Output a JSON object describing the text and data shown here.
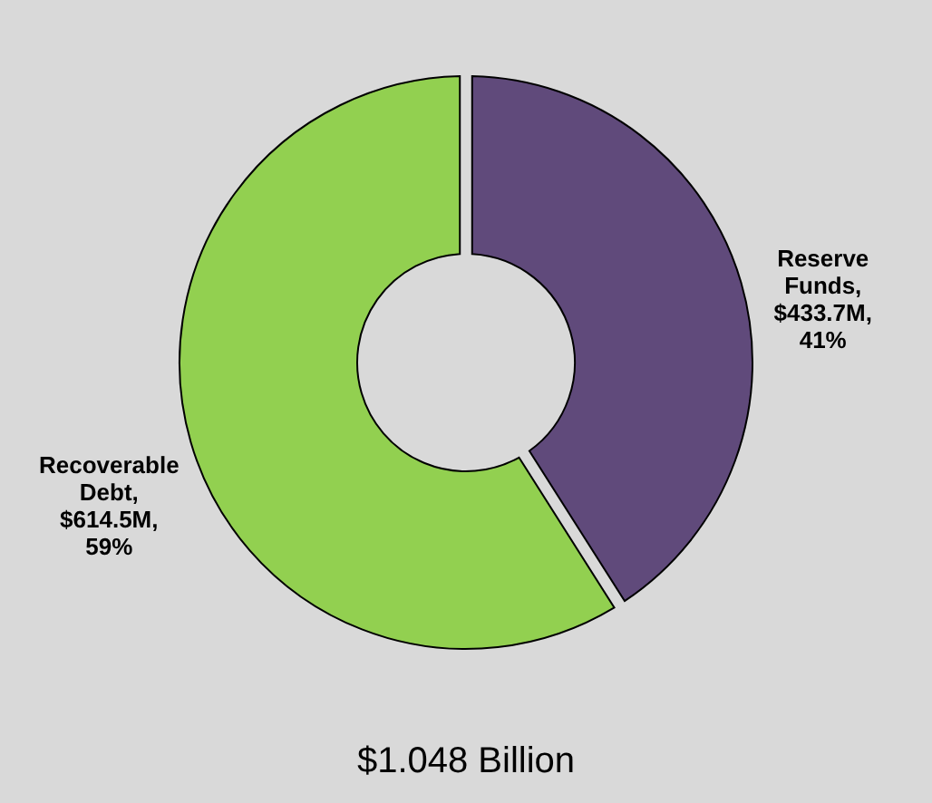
{
  "chart_data": {
    "type": "donut",
    "categories": [
      "Reserve Funds",
      "Recoverable Debt"
    ],
    "values": [
      41,
      59
    ],
    "colors": [
      "#604a7b",
      "#92d050"
    ],
    "value_labels": [
      ", $433.7M, 41%",
      ", $614.5M, 59%"
    ],
    "annotations": [
      "$1.048 Billion"
    ]
  }
}
